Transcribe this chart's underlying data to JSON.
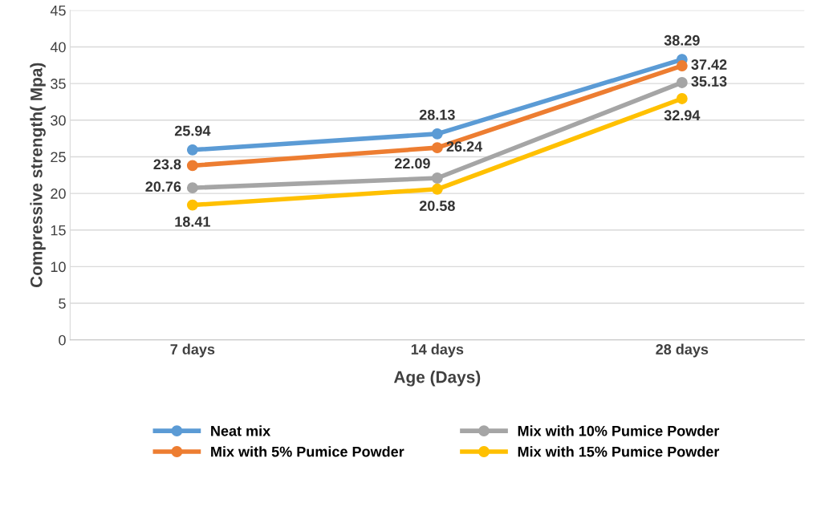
{
  "chart_data": {
    "type": "line",
    "ylabel": "Compressive strength( Mpa)",
    "xlabel": "Age (Days)",
    "categories": [
      "7 days",
      "14 days",
      "28 days"
    ],
    "series": [
      {
        "name": "Neat mix",
        "color": "#5b9bd5",
        "values": [
          25.94,
          28.13,
          38.29
        ]
      },
      {
        "name": "Mix with 5% Pumice Powder",
        "color": "#ed7d31",
        "values": [
          23.8,
          26.24,
          37.42
        ]
      },
      {
        "name": "Mix with 10% Pumice Powder",
        "color": "#a5a5a5",
        "values": [
          20.76,
          22.09,
          35.13
        ]
      },
      {
        "name": "Mix with 15% Pumice Powder",
        "color": "#ffc000",
        "values": [
          18.41,
          20.58,
          32.94
        ]
      }
    ],
    "ylim": [
      0,
      45
    ],
    "yticks": [
      0,
      5,
      10,
      15,
      20,
      25,
      30,
      35,
      40,
      45
    ],
    "grid": "y",
    "legend": "bottom",
    "marker": "circle",
    "line_style": "solid",
    "data_labels": true
  }
}
